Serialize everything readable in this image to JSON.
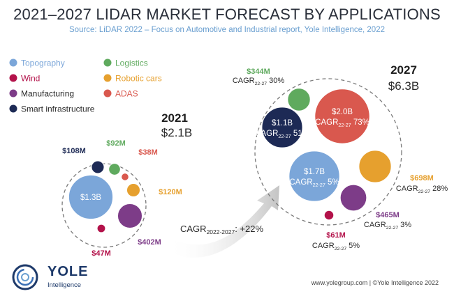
{
  "title": "2021–2027 LIDAR MARKET FORECAST BY APPLICATIONS",
  "source": "Source: LiDAR 2022 – Focus on Automotive and Industrial report, Yole Intelligence, 2022",
  "logo": {
    "name": "YOLE",
    "sub": "Intelligence"
  },
  "footer": "www.yolegroup.com | ©Yole Intelligence 2022",
  "colors": {
    "Topography": "#7ba6d9",
    "Wind": "#b3124a",
    "Manufacturing": "#7d3c88",
    "Smart infrastructure": "#1d2a55",
    "Logistics": "#5faa5e",
    "Robotic cars": "#e6a02e",
    "ADAS": "#d9584e"
  },
  "chart_data": {
    "type": "bubble",
    "title": "2021–2027 LIDAR MARKET FORECAST BY APPLICATIONS",
    "legend": [
      "Topography",
      "Wind",
      "Manufacturing",
      "Smart infrastructure",
      "Logistics",
      "Robotic cars",
      "ADAS"
    ],
    "growth_label": "CAGR",
    "growth_period": "2022-2027",
    "growth_suffix": ": +22%",
    "cagr_period": "22-27",
    "series": [
      {
        "year": "2021",
        "total": "$2.1B",
        "values": [
          {
            "name": "Topography",
            "value": 1300,
            "label": "$1.3B"
          },
          {
            "name": "Smart infrastructure",
            "value": 108,
            "label": "$108M"
          },
          {
            "name": "Logistics",
            "value": 92,
            "label": "$92M"
          },
          {
            "name": "ADAS",
            "value": 38,
            "label": "$38M"
          },
          {
            "name": "Robotic cars",
            "value": 120,
            "label": "$120M"
          },
          {
            "name": "Manufacturing",
            "value": 402,
            "label": "$402M"
          },
          {
            "name": "Wind",
            "value": 47,
            "label": "$47M"
          }
        ]
      },
      {
        "year": "2027",
        "total": "$6.3B",
        "values": [
          {
            "name": "ADAS",
            "value": 2000,
            "label": "$2.0B",
            "cagr": "73%"
          },
          {
            "name": "Topography",
            "value": 1700,
            "label": "$1.7B",
            "cagr": "5%"
          },
          {
            "name": "Smart infrastructure",
            "value": 1100,
            "label": "$1.1B",
            "cagr": "51%"
          },
          {
            "name": "Logistics",
            "value": 344,
            "label": "$344M",
            "cagr": "30%"
          },
          {
            "name": "Robotic cars",
            "value": 698,
            "label": "$698M",
            "cagr": "28%"
          },
          {
            "name": "Manufacturing",
            "value": 465,
            "label": "$465M",
            "cagr": "3%"
          },
          {
            "name": "Wind",
            "value": 61,
            "label": "$61M",
            "cagr": "5%"
          }
        ]
      }
    ]
  }
}
